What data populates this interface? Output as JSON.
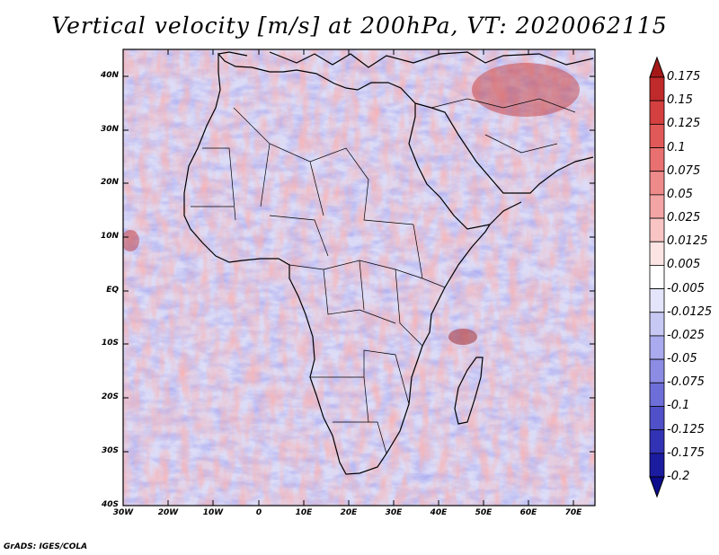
{
  "title": "Vertical velocity [m/s] at 200hPa, VT: 2020062115",
  "footer": "GrADS: IGES/COLA",
  "lat_labels": [
    "40N",
    "30N",
    "20N",
    "10N",
    "EQ",
    "10S",
    "20S",
    "30S",
    "40S"
  ],
  "lon_labels": [
    "30W",
    "20W",
    "10W",
    "0",
    "10E",
    "20E",
    "30E",
    "40E",
    "50E",
    "60E",
    "70E"
  ],
  "colorbar": {
    "labels": [
      "0.175",
      "0.15",
      "0.125",
      "0.1",
      "0.075",
      "0.05",
      "0.025",
      "0.0125",
      "0.005",
      "-0.005",
      "-0.0125",
      "-0.025",
      "-0.05",
      "-0.075",
      "-0.1",
      "-0.125",
      "-0.175",
      "-0.2"
    ],
    "colors": [
      "#a41818",
      "#c02a2a",
      "#d44040",
      "#e05858",
      "#e87070",
      "#ee8a8a",
      "#f3a4a4",
      "#f8c4c4",
      "#fde4e4",
      "#ffffff",
      "#e4e4fb",
      "#c8c8f4",
      "#aaaaee",
      "#8c8ce4",
      "#6e6ed8",
      "#5050c8",
      "#3232b4",
      "#1c1ca0",
      "#0c0c8c"
    ]
  },
  "field_colors": {
    "neutral": "#ffffff",
    "up": "#f07878",
    "down": "#7a7ae0",
    "coast": "#000000"
  }
}
